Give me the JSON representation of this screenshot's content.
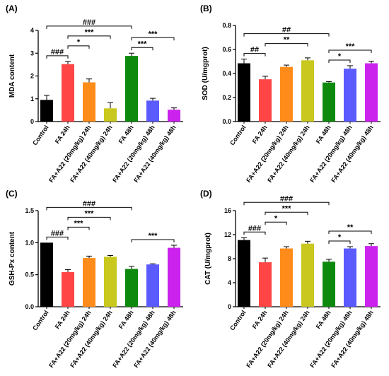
{
  "categories": [
    "Control",
    "FA 24h",
    "FA+A22 (20mg/kg) 24h",
    "FA+A22 (40mg/kg) 24h",
    "FA 48h",
    "FA+A22 (20mg/kg) 48h",
    "FA+A22 (40mg/kg) 48h"
  ],
  "colors": [
    "#000000",
    "#ff4545",
    "#ff8c1a",
    "#c8c81e",
    "#0d8a0d",
    "#5a5aff",
    "#cc22ee"
  ],
  "chart_data": [
    {
      "type": "bar",
      "panel": "(A)",
      "ylabel": "MDA content",
      "categories": [
        "Control",
        "FA 24h",
        "FA+A22 (20mg/kg) 24h",
        "FA+A22 (40mg/kg) 24h",
        "FA 48h",
        "FA+A22 (20mg/kg) 48h",
        "FA+A22 (40mg/kg) 48h"
      ],
      "values": [
        0.95,
        2.52,
        1.72,
        0.58,
        2.88,
        0.92,
        0.52
      ],
      "errors": [
        0.2,
        0.12,
        0.15,
        0.25,
        0.12,
        0.1,
        0.08
      ],
      "ylim": [
        0,
        4
      ],
      "yticks": [
        "0",
        "1",
        "2",
        "3",
        "4"
      ],
      "yticks_values": [
        0,
        1,
        2,
        3,
        4
      ],
      "significance": [
        {
          "from": 0,
          "to": 4,
          "label": "###"
        },
        {
          "from": 0,
          "to": 1,
          "label": "###"
        },
        {
          "from": 1,
          "to": 3,
          "label": "***"
        },
        {
          "from": 1,
          "to": 2,
          "label": "*"
        },
        {
          "from": 4,
          "to": 6,
          "label": "***"
        },
        {
          "from": 4,
          "to": 5,
          "label": "***"
        }
      ]
    },
    {
      "type": "bar",
      "panel": "(B)",
      "ylabel": "SOD (U/mgprot)",
      "categories": [
        "Control",
        "FA 24h",
        "FA+A22 (20mg/kg) 24h",
        "FA+A22 (40mg/kg) 24h",
        "FA 48h",
        "FA+A22 (20mg/kg) 48h",
        "FA+A22 (40mg/kg) 48h"
      ],
      "values": [
        0.485,
        0.352,
        0.455,
        0.51,
        0.325,
        0.44,
        0.485
      ],
      "errors": [
        0.035,
        0.025,
        0.015,
        0.02,
        0.008,
        0.025,
        0.018
      ],
      "ylim": [
        0,
        0.8
      ],
      "yticks": [
        "0.0",
        "0.2",
        "0.4",
        "0.6",
        "0.8"
      ],
      "yticks_values": [
        0,
        0.2,
        0.4,
        0.6,
        0.8
      ],
      "significance": [
        {
          "from": 0,
          "to": 4,
          "label": "##"
        },
        {
          "from": 0,
          "to": 1,
          "label": "##"
        },
        {
          "from": 1,
          "to": 3,
          "label": "**"
        },
        {
          "from": 4,
          "to": 6,
          "label": "***"
        },
        {
          "from": 4,
          "to": 5,
          "label": "*"
        }
      ]
    },
    {
      "type": "bar",
      "panel": "(C)",
      "ylabel": "GSH-Px content",
      "categories": [
        "Control",
        "FA 24h",
        "FA+A22 (20mg/kg) 24h",
        "FA+A22 (40mg/kg) 24h",
        "FA 48h",
        "FA+A22 (20mg/kg) 48h",
        "FA+A22 (40mg/kg) 48h"
      ],
      "values": [
        1.0,
        0.54,
        0.76,
        0.78,
        0.59,
        0.66,
        0.92
      ],
      "errors": [
        0.0,
        0.04,
        0.03,
        0.02,
        0.04,
        0.01,
        0.04
      ],
      "ylim": [
        0,
        1.5
      ],
      "yticks": [
        "0.0",
        "0.5",
        "1.0",
        "1.5"
      ],
      "yticks_values": [
        0,
        0.5,
        1.0,
        1.5
      ],
      "significance": [
        {
          "from": 0,
          "to": 4,
          "label": "###"
        },
        {
          "from": 0,
          "to": 1,
          "label": "###"
        },
        {
          "from": 1,
          "to": 3,
          "label": "***"
        },
        {
          "from": 1,
          "to": 2,
          "label": "***"
        },
        {
          "from": 4,
          "to": 6,
          "label": "***"
        }
      ]
    },
    {
      "type": "bar",
      "panel": "(D)",
      "ylabel": "CAT (U/mgprot)",
      "categories": [
        "Control",
        "FA 24h",
        "FA+A22 (20mg/kg) 24h",
        "FA+A22 (40mg/kg) 24h",
        "FA 48h",
        "FA+A22 (20mg/kg) 48h",
        "FA+A22 (40mg/kg) 48h"
      ],
      "values": [
        11.1,
        7.4,
        9.7,
        10.5,
        7.5,
        9.7,
        10.1
      ],
      "errors": [
        0.4,
        0.7,
        0.3,
        0.4,
        0.4,
        0.3,
        0.4
      ],
      "ylim": [
        0,
        16
      ],
      "yticks": [
        "0",
        "4",
        "8",
        "12",
        "16"
      ],
      "yticks_values": [
        0,
        4,
        8,
        12,
        16
      ],
      "significance": [
        {
          "from": 0,
          "to": 4,
          "label": "###"
        },
        {
          "from": 0,
          "to": 1,
          "label": "###"
        },
        {
          "from": 1,
          "to": 3,
          "label": "***"
        },
        {
          "from": 1,
          "to": 2,
          "label": "*"
        },
        {
          "from": 4,
          "to": 6,
          "label": "**"
        },
        {
          "from": 4,
          "to": 5,
          "label": "*"
        }
      ]
    }
  ]
}
